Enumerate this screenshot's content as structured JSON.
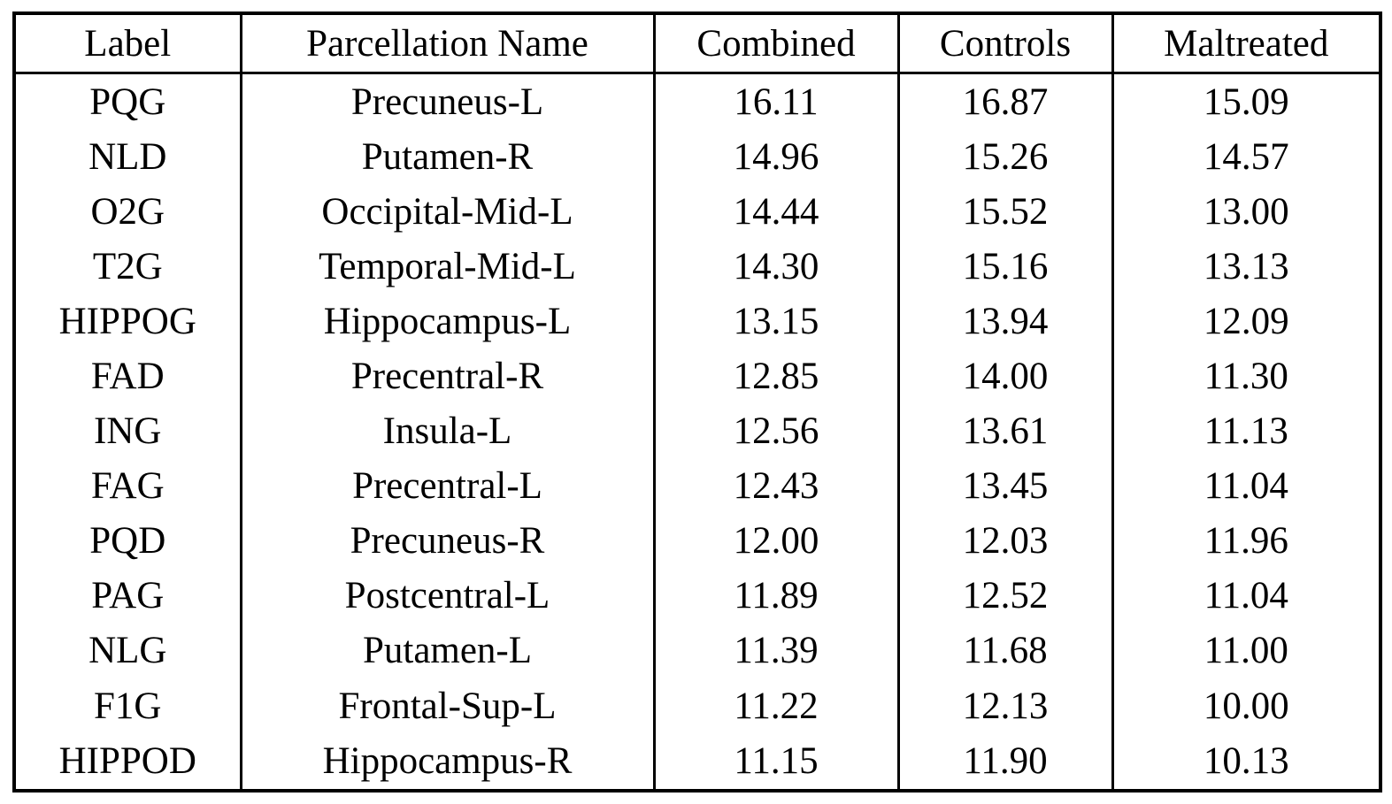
{
  "chart_data": {
    "type": "table",
    "columns": [
      "Label",
      "Parcellation Name",
      "Combined",
      "Controls",
      "Maltreated"
    ],
    "rows": [
      [
        "PQG",
        "Precuneus-L",
        "16.11",
        "16.87",
        "15.09"
      ],
      [
        "NLD",
        "Putamen-R",
        "14.96",
        "15.26",
        "14.57"
      ],
      [
        "O2G",
        "Occipital-Mid-L",
        "14.44",
        "15.52",
        "13.00"
      ],
      [
        "T2G",
        "Temporal-Mid-L",
        "14.30",
        "15.16",
        "13.13"
      ],
      [
        "HIPPOG",
        "Hippocampus-L",
        "13.15",
        "13.94",
        "12.09"
      ],
      [
        "FAD",
        "Precentral-R",
        "12.85",
        "14.00",
        "11.30"
      ],
      [
        "ING",
        "Insula-L",
        "12.56",
        "13.61",
        "11.13"
      ],
      [
        "FAG",
        "Precentral-L",
        "12.43",
        "13.45",
        "11.04"
      ],
      [
        "PQD",
        "Precuneus-R",
        "12.00",
        "12.03",
        "11.96"
      ],
      [
        "PAG",
        "Postcentral-L",
        "11.89",
        "12.52",
        "11.04"
      ],
      [
        "NLG",
        "Putamen-L",
        "11.39",
        "11.68",
        "11.00"
      ],
      [
        "F1G",
        "Frontal-Sup-L",
        "11.22",
        "12.13",
        "10.00"
      ],
      [
        "HIPPOD",
        "Hippocampus-R",
        "11.15",
        "11.90",
        "10.13"
      ]
    ],
    "text_color": "#000000",
    "border_color": "#000000",
    "background_color": "#ffffff"
  }
}
